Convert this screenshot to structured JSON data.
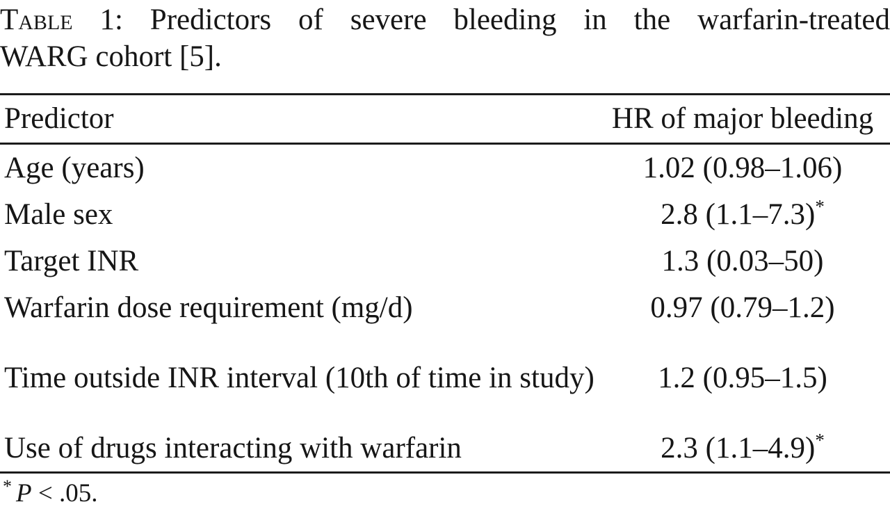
{
  "caption": {
    "prefix": "Table 1:",
    "line1_rest": "Predictors of severe bleeding in the warfarin-treated",
    "line2": "WARG cohort [5]."
  },
  "table": {
    "columns": [
      "Predictor",
      "HR of major bleeding"
    ],
    "rows": [
      {
        "predictor": "Age (years)",
        "hr": "1.02 (0.98–1.06)",
        "sig": ""
      },
      {
        "predictor": "Male sex",
        "hr": "2.8 (1.1–7.3)",
        "sig": "*"
      },
      {
        "predictor": "Target INR",
        "hr": "1.3 (0.03–50)",
        "sig": ""
      },
      {
        "predictor": "Warfarin dose requirement (mg/d)",
        "hr": "0.97 (0.79–1.2)",
        "sig": ""
      },
      {
        "predictor": "Time outside INR interval (10th of time in study)",
        "hr": "1.2 (0.95–1.5)",
        "sig": ""
      },
      {
        "predictor": "Use of drugs interacting with warfarin",
        "hr": "2.3 (1.1–4.9)",
        "sig": "*"
      }
    ]
  },
  "footnote": {
    "star": "*",
    "p": "P",
    "rest": " < .05."
  }
}
